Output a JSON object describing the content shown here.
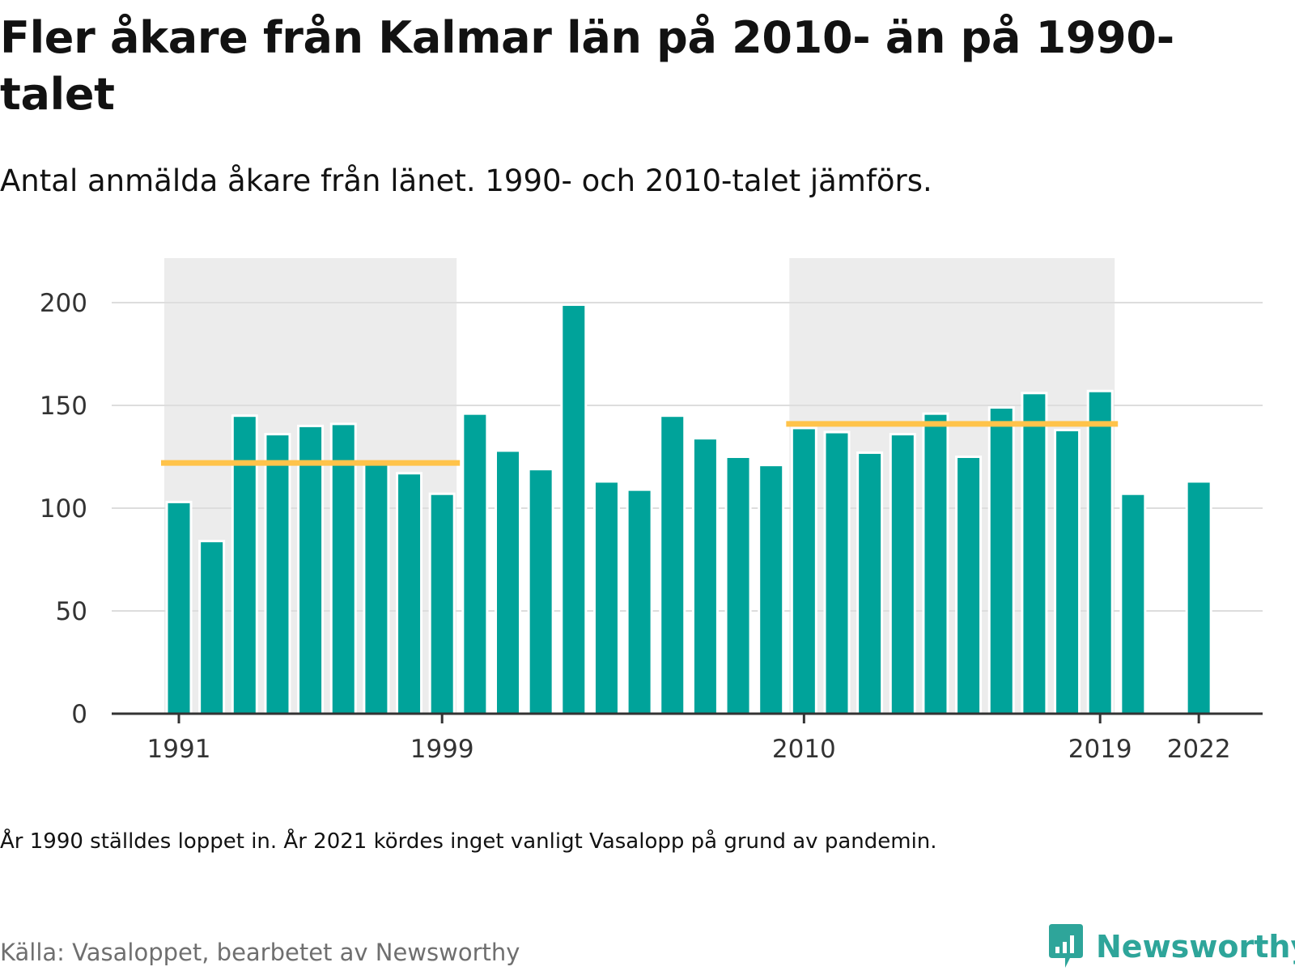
{
  "header": {
    "title": "Fler åkare från Kalmar län på 2010- än på 1990-talet",
    "subtitle": "Antal anmälda åkare från länet. 1990- och 2010-talet jämförs."
  },
  "footer": {
    "note": "År 1990 ställdes loppet in. År 2021 kördes inget vanligt Vasalopp på grund av pandemin.",
    "source": "Källa: Vasaloppet, bearbetet av Newsworthy",
    "brand": "Newsworthy"
  },
  "colors": {
    "bar": "#00a39a",
    "average_line": "#ffc34a",
    "decade_shade": "#ececec",
    "grid": "#dddddd",
    "axis": "#333333",
    "brand": "#2ea59a"
  },
  "chart_data": {
    "type": "bar",
    "categories": [
      1991,
      1992,
      1993,
      1994,
      1995,
      1996,
      1997,
      1998,
      1999,
      2000,
      2001,
      2002,
      2003,
      2004,
      2005,
      2006,
      2007,
      2008,
      2009,
      2010,
      2011,
      2012,
      2013,
      2014,
      2015,
      2016,
      2017,
      2018,
      2019,
      2020,
      2021,
      2022
    ],
    "values": [
      103,
      84,
      145,
      136,
      140,
      141,
      122,
      117,
      107,
      146,
      128,
      119,
      199,
      113,
      109,
      145,
      134,
      125,
      121,
      139,
      137,
      127,
      136,
      146,
      125,
      149,
      156,
      138,
      157,
      107,
      null,
      113
    ],
    "x_tick_labels": [
      "1991",
      "1999",
      "2010",
      "2019",
      "2022"
    ],
    "y_ticks": [
      0,
      50,
      100,
      150,
      200
    ],
    "ylim": [
      0,
      230
    ],
    "grid": true,
    "highlighted_periods": [
      {
        "start": 1991,
        "end": 1999,
        "average": 122
      },
      {
        "start": 2010,
        "end": 2019,
        "average": 141
      }
    ]
  }
}
